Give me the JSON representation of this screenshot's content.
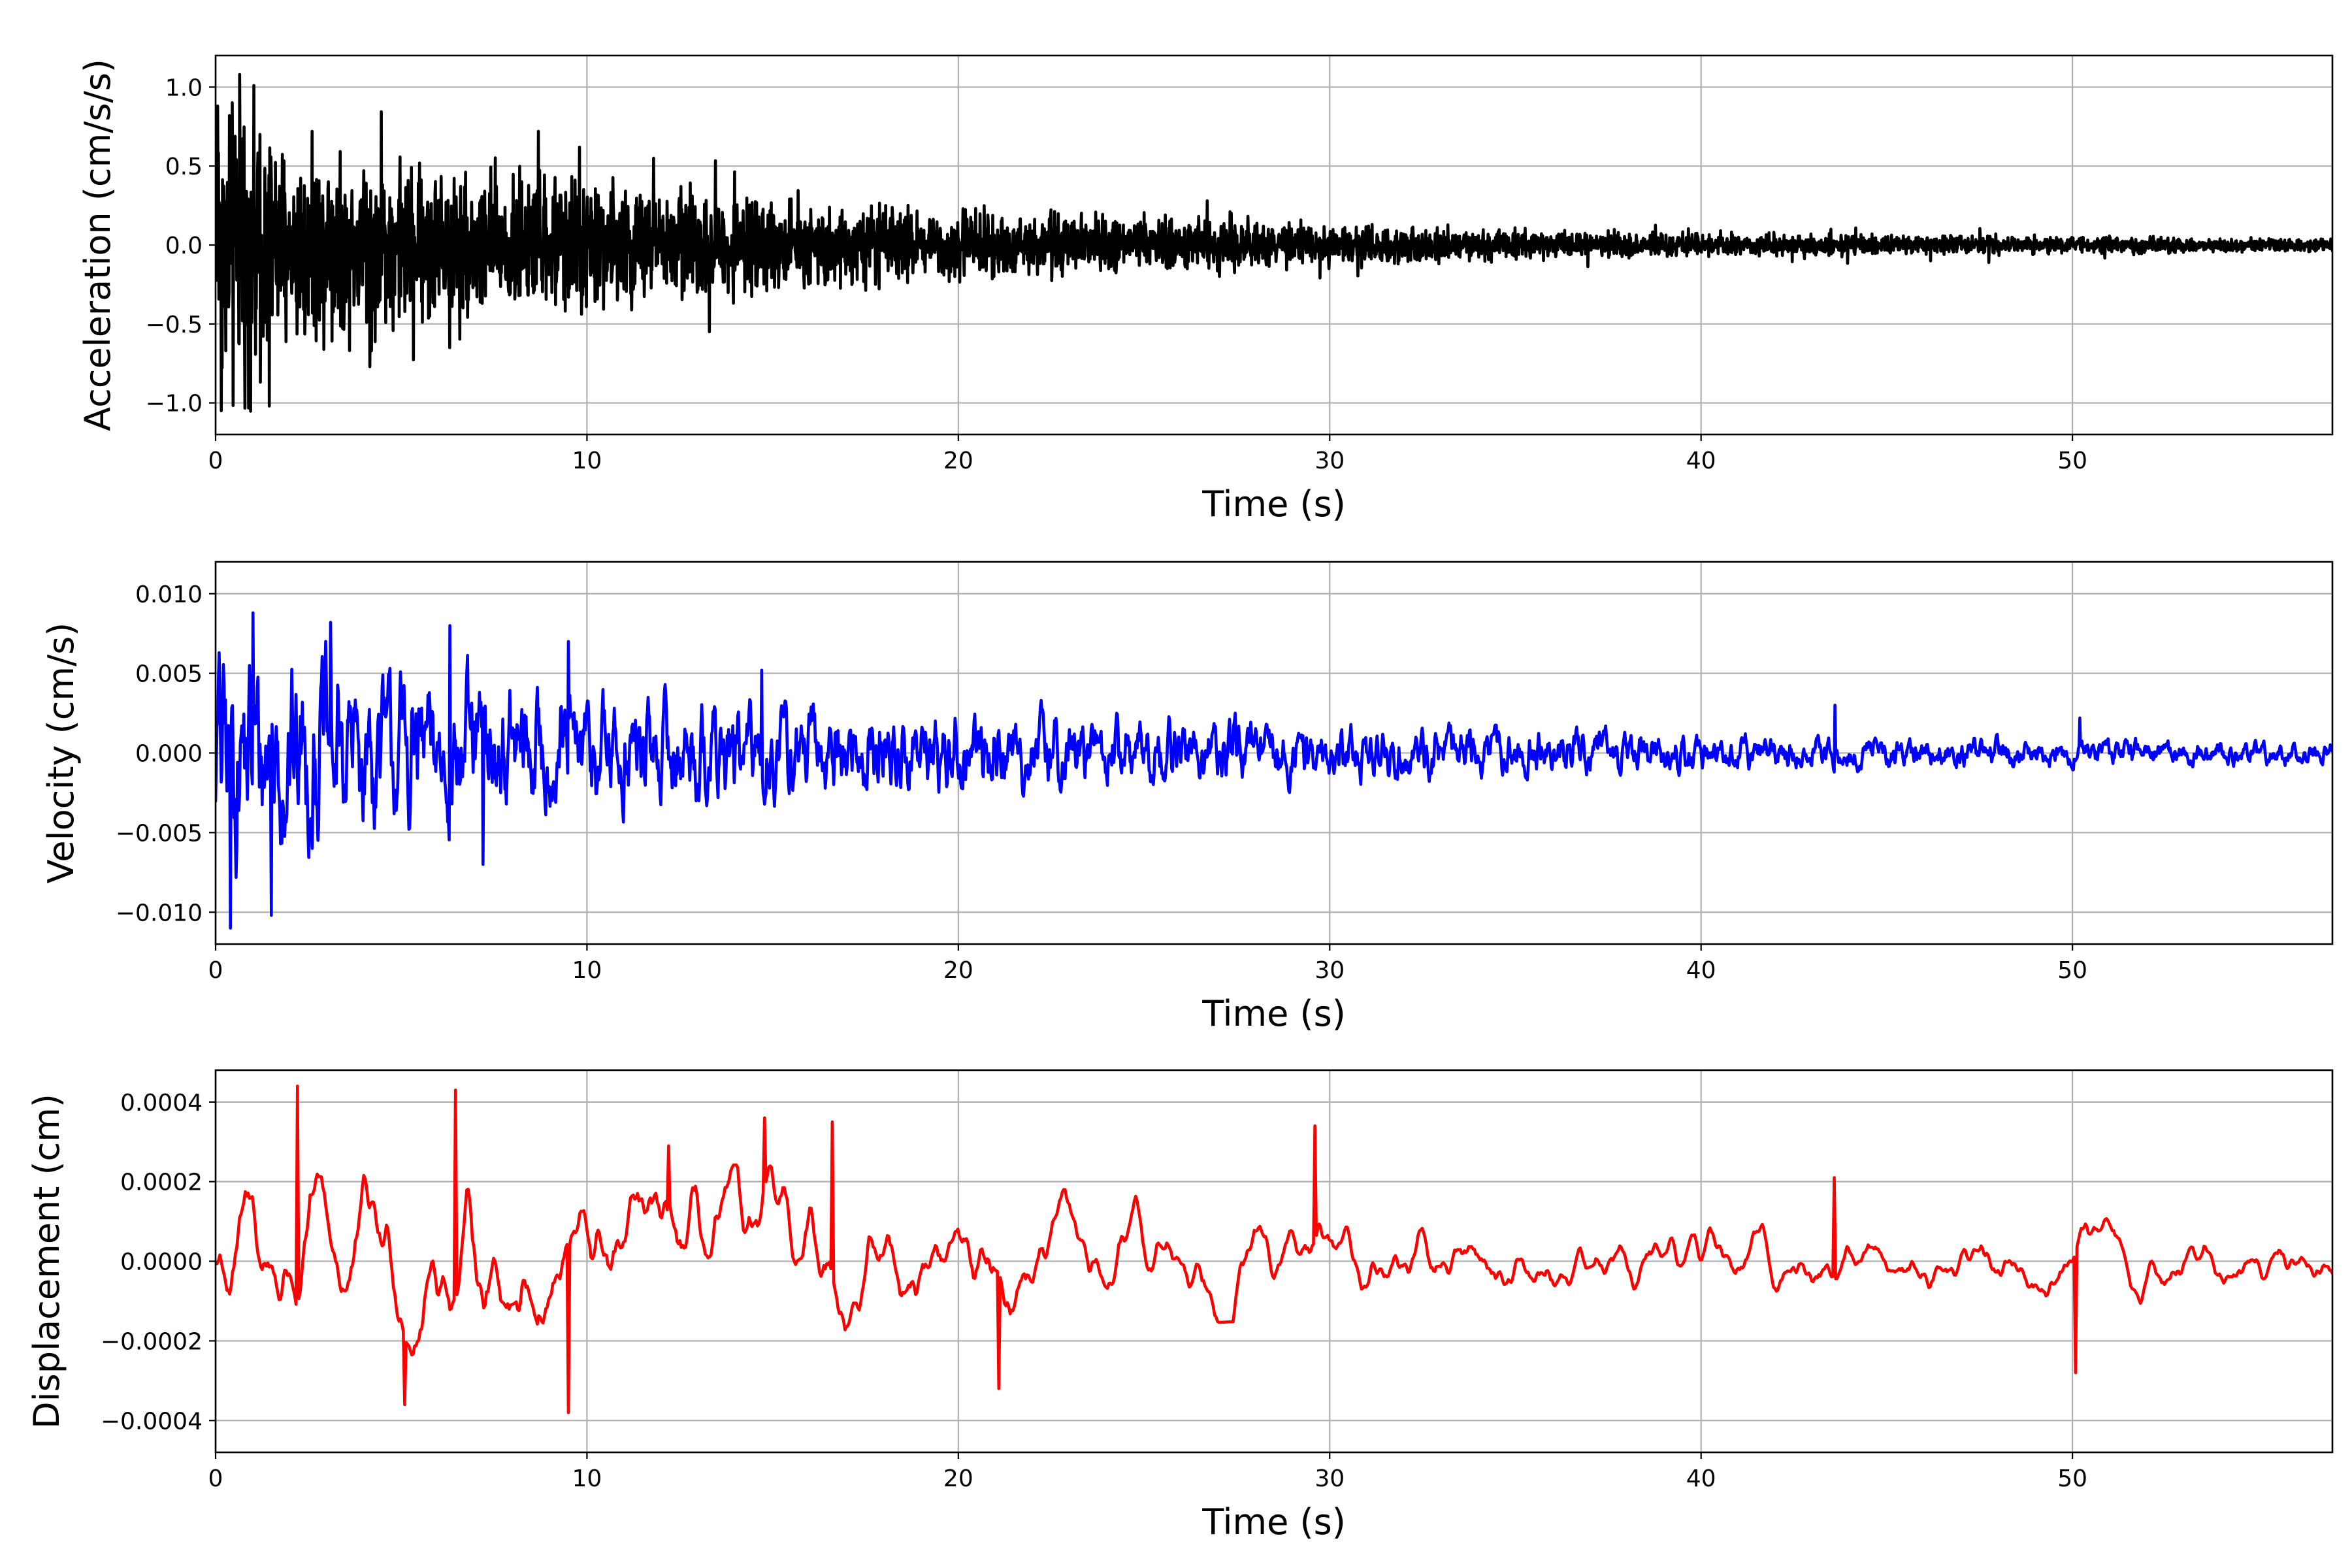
{
  "chart_data": [
    {
      "type": "line",
      "id": "acceleration",
      "xlabel": "Time (s)",
      "ylabel": "Acceleration (cm/s/s)",
      "xlim": [
        0,
        57
      ],
      "ylim": [
        -1.2,
        1.2
      ],
      "xticks": [
        0,
        10,
        20,
        30,
        40,
        50
      ],
      "yticks": [
        -1.0,
        -0.5,
        0.0,
        0.5,
        1.0
      ],
      "ytick_labels": [
        "−1.0",
        "−0.5",
        "0.0",
        "0.5",
        "1.0"
      ],
      "grid": true,
      "color": "#000000",
      "envelope": {
        "t": [
          0,
          2,
          5,
          10,
          15,
          20,
          25,
          30,
          35,
          40,
          45,
          50,
          55,
          57
        ],
        "amp": [
          0.95,
          0.62,
          0.5,
          0.4,
          0.26,
          0.2,
          0.16,
          0.12,
          0.09,
          0.07,
          0.06,
          0.05,
          0.04,
          0.04
        ]
      },
      "peaks": [
        [
          0.05,
          0.88
        ],
        [
          0.15,
          -1.05
        ],
        [
          0.65,
          1.08
        ],
        [
          1.45,
          -1.02
        ],
        [
          0.5,
          0.62
        ],
        [
          1.2,
          0.7
        ],
        [
          2.6,
          0.72
        ],
        [
          4.2,
          -0.67
        ],
        [
          6.3,
          -0.65
        ],
        [
          9.8,
          0.62
        ],
        [
          11.8,
          0.55
        ],
        [
          13.3,
          -0.55
        ],
        [
          26.7,
          0.28
        ],
        [
          43.5,
          0.1
        ]
      ]
    },
    {
      "type": "line",
      "id": "velocity",
      "xlabel": "Time (s)",
      "ylabel": "Velocity (cm/s)",
      "xlim": [
        0,
        57
      ],
      "ylim": [
        -0.012,
        0.012
      ],
      "xticks": [
        0,
        10,
        20,
        30,
        40,
        50
      ],
      "yticks": [
        -0.01,
        -0.005,
        0.0,
        0.005,
        0.01
      ],
      "ytick_labels": [
        "−0.010",
        "−0.005",
        "0.000",
        "0.005",
        "0.010"
      ],
      "grid": true,
      "color": "#0000ff",
      "envelope": {
        "t": [
          0,
          2,
          5,
          8,
          10,
          15,
          20,
          25,
          30,
          35,
          40,
          45,
          50,
          55,
          57
        ],
        "amp": [
          0.0088,
          0.0075,
          0.0058,
          0.0052,
          0.0045,
          0.0036,
          0.0032,
          0.0026,
          0.0021,
          0.0017,
          0.0014,
          0.0011,
          0.001,
          0.0008,
          0.0008
        ]
      },
      "peaks": [
        [
          0.4,
          -0.011
        ],
        [
          1.0,
          0.0088
        ],
        [
          1.5,
          -0.0102
        ],
        [
          3.1,
          0.0082
        ],
        [
          6.3,
          0.008
        ],
        [
          7.2,
          -0.007
        ],
        [
          9.5,
          0.007
        ],
        [
          14.7,
          0.0052
        ],
        [
          43.6,
          0.003
        ],
        [
          50.2,
          0.0022
        ]
      ]
    },
    {
      "type": "line",
      "id": "displacement",
      "xlabel": "Time (s)",
      "ylabel": "Displacement (cm)",
      "xlim": [
        0,
        57
      ],
      "ylim": [
        -0.00048,
        0.00048
      ],
      "xticks": [
        0,
        10,
        20,
        30,
        40,
        50
      ],
      "yticks": [
        -0.0004,
        -0.0002,
        0.0,
        0.0002,
        0.0004
      ],
      "ytick_labels": [
        "−0.0004",
        "−0.0002",
        "0.0000",
        "0.0002",
        "0.0004"
      ],
      "grid": true,
      "color": "#ff0000",
      "envelope": {
        "t": [
          0,
          5,
          10,
          15,
          20,
          25,
          30,
          35,
          40,
          45,
          50,
          55,
          57
        ],
        "amp": [
          0.00024,
          0.00022,
          0.0002,
          0.00019,
          0.00016,
          0.00013,
          0.00011,
          0.0001,
          0.0001,
          0.0001,
          9e-05,
          9e-05,
          8e-05
        ]
      },
      "peaks": [
        [
          2.2,
          0.00044
        ],
        [
          5.1,
          -0.00036
        ],
        [
          6.45,
          0.00043
        ],
        [
          9.5,
          -0.00038
        ],
        [
          12.2,
          0.00029
        ],
        [
          14.8,
          0.00036
        ],
        [
          16.6,
          0.00035
        ],
        [
          21.1,
          -0.00032
        ],
        [
          29.6,
          0.00034
        ],
        [
          43.6,
          0.00021
        ],
        [
          50.1,
          -0.00028
        ]
      ]
    }
  ]
}
